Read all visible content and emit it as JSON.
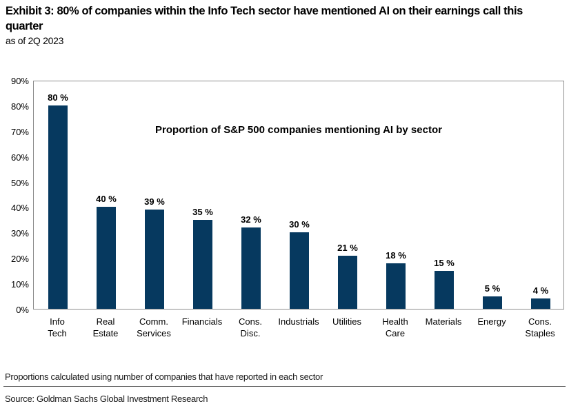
{
  "header": {
    "title": "Exhibit 3: 80% of companies within the Info Tech sector have mentioned AI on their earnings call this quarter",
    "subtitle": "as of 2Q 2023"
  },
  "chart_data": {
    "type": "bar",
    "title": "Proportion of S&P 500 companies mentioning AI by sector",
    "categories": [
      "Info Tech",
      "Real Estate",
      "Comm. Services",
      "Financials",
      "Cons. Disc.",
      "Industrials",
      "Utilities",
      "Health Care",
      "Materials",
      "Energy",
      "Cons. Staples"
    ],
    "category_display_lines": [
      [
        "Info",
        "Tech"
      ],
      [
        "Real",
        "Estate"
      ],
      [
        "Comm.",
        "Services"
      ],
      [
        "Financials"
      ],
      [
        "Cons.",
        "Disc."
      ],
      [
        "Industrials"
      ],
      [
        "Utilities"
      ],
      [
        "Health",
        "Care"
      ],
      [
        "Materials"
      ],
      [
        "Energy"
      ],
      [
        "Cons.",
        "Staples"
      ]
    ],
    "values": [
      80,
      40,
      39,
      35,
      32,
      30,
      21,
      18,
      15,
      5,
      4
    ],
    "value_label_suffix": " %",
    "xlabel": "",
    "ylabel": "",
    "ylim": [
      0,
      90
    ],
    "y_tick_step": 10,
    "y_tick_suffix": "%",
    "grid": false,
    "legend": false,
    "bar_color": "#06395f",
    "frame_color": "#8c8c8c"
  },
  "footer": {
    "note": "Proportions calculated using number of companies that have reported in each sector",
    "source": "Source: Goldman Sachs Global Investment Research"
  }
}
